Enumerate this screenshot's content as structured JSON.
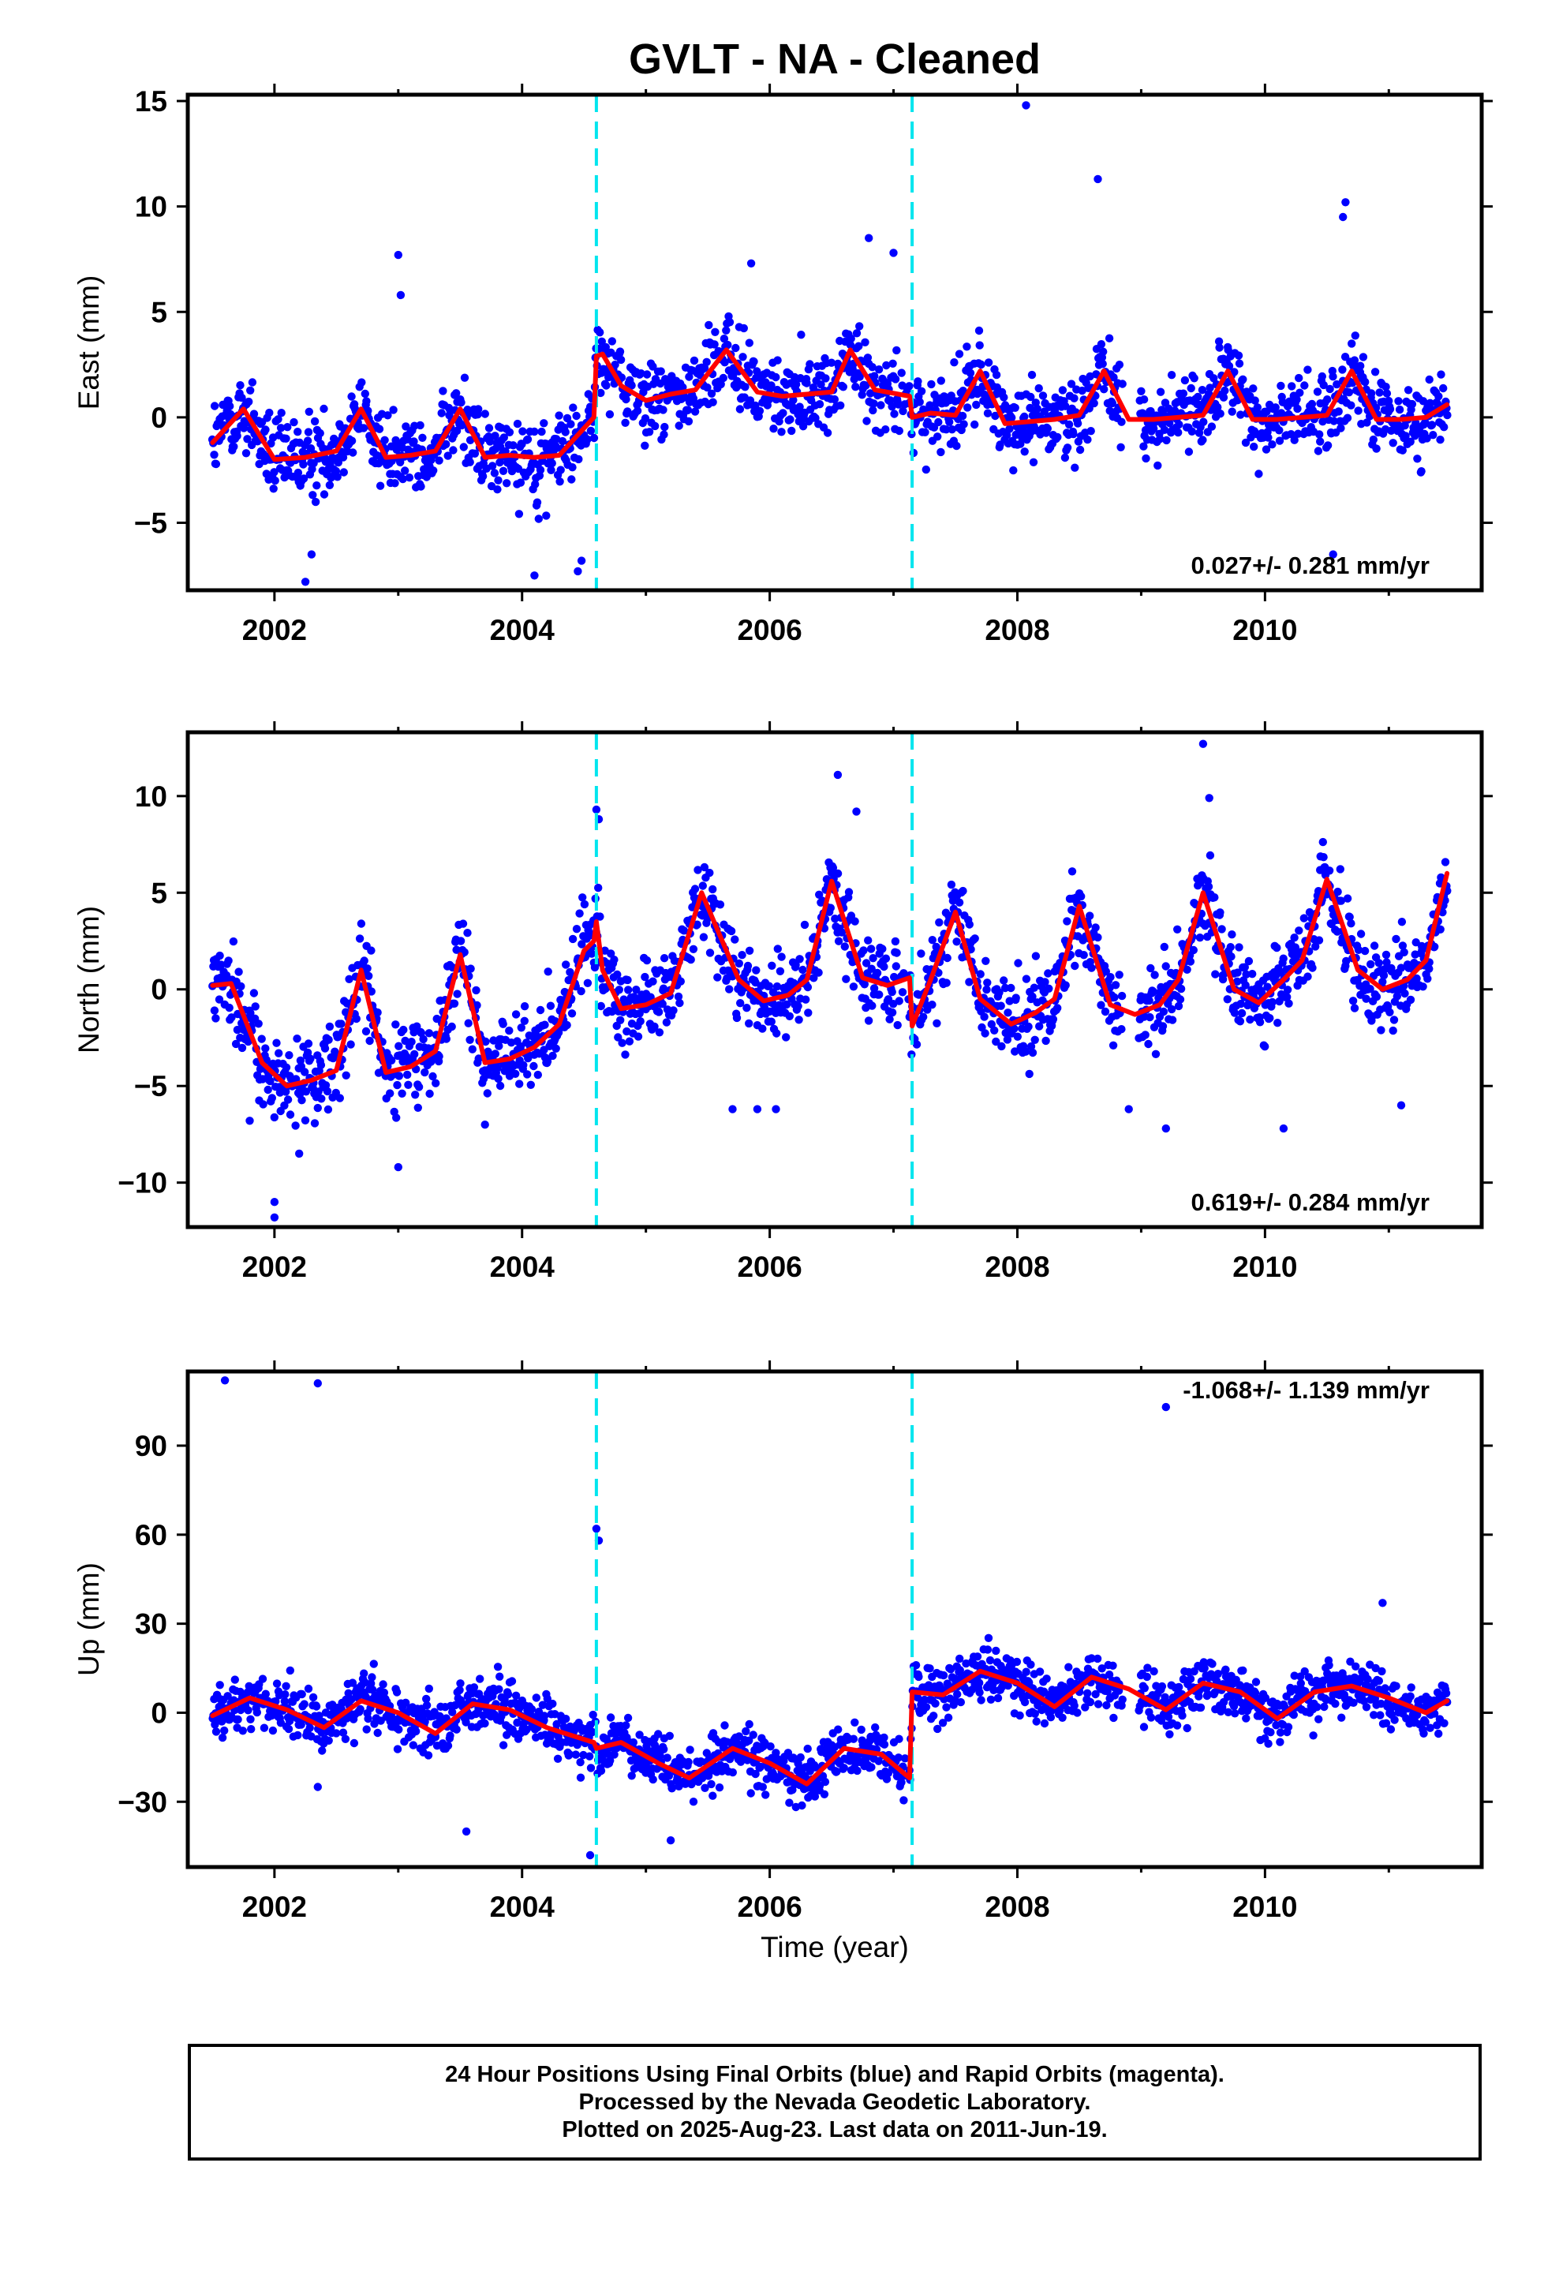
{
  "title": "GVLT  - NA - Cleaned",
  "xlabel": "Time (year)",
  "footer": [
    "24 Hour Positions Using Final Orbits (blue) and Rapid Orbits (magenta).",
    "Processed by the Nevada Geodetic Laboratory.",
    "Plotted on 2025-Aug-23. Last data on 2011-Jun-19."
  ],
  "colors": {
    "points": "#0000ff",
    "model": "#ff0000",
    "offsets": "#00e5ee"
  },
  "chart_data": [
    {
      "type": "scatter",
      "ylabel": "East (mm)",
      "rate_text": "0.027+/- 0.281 mm/yr",
      "xlim": [
        2001.3,
        2011.75
      ],
      "ylim": [
        -8.2,
        15.3
      ],
      "xticks": [
        2002,
        2004,
        2006,
        2008,
        2010
      ],
      "yticks": [
        -5,
        0,
        5,
        10,
        15
      ],
      "offsets": [
        2004.6,
        2007.15
      ],
      "data_range": [
        2001.5,
        2011.47
      ],
      "model": {
        "x": [
          2001.5,
          2001.75,
          2002.0,
          2002.25,
          2002.5,
          2002.7,
          2002.9,
          2003.1,
          2003.3,
          2003.5,
          2003.7,
          2003.9,
          2004.1,
          2004.3,
          2004.58,
          2004.6,
          2004.65,
          2004.8,
          2005.0,
          2005.2,
          2005.4,
          2005.65,
          2005.9,
          2006.1,
          2006.3,
          2006.5,
          2006.65,
          2006.85,
          2007.13,
          2007.15,
          2007.3,
          2007.5,
          2007.7,
          2007.9,
          2008.1,
          2008.3,
          2008.5,
          2008.7,
          2008.9,
          2009.1,
          2009.3,
          2009.5,
          2009.7,
          2009.9,
          2010.1,
          2010.3,
          2010.5,
          2010.7,
          2010.9,
          2011.1,
          2011.3,
          2011.47
        ],
        "y": [
          -1.2,
          0.4,
          -2.0,
          -1.9,
          -1.6,
          0.4,
          -1.9,
          -1.8,
          -1.6,
          0.4,
          -1.9,
          -1.8,
          -1.9,
          -1.8,
          0.0,
          2.9,
          3.0,
          1.5,
          0.8,
          1.1,
          1.3,
          3.2,
          1.2,
          1.0,
          1.1,
          1.2,
          3.2,
          1.3,
          1.0,
          0.0,
          0.2,
          0.1,
          2.2,
          -0.3,
          -0.2,
          -0.1,
          0.1,
          2.2,
          -0.1,
          -0.1,
          0.0,
          0.1,
          2.2,
          -0.1,
          -0.1,
          0.0,
          0.1,
          2.2,
          -0.1,
          -0.1,
          0.0,
          0.6
        ]
      },
      "outliers": {
        "x": [
          2002.25,
          2002.3,
          2003.0,
          2003.02,
          2004.1,
          2004.45,
          2004.48,
          2008.07,
          2008.65,
          2010.65,
          2010.63,
          2007.0,
          2006.8,
          2005.85,
          2010.55
        ],
        "y": [
          -7.8,
          -6.5,
          7.7,
          5.8,
          -7.5,
          -7.3,
          -6.8,
          14.8,
          11.3,
          10.2,
          9.5,
          7.8,
          8.5,
          7.3,
          -6.5
        ]
      }
    },
    {
      "type": "scatter",
      "ylabel": "North (mm)",
      "rate_text": "0.619+/- 0.284 mm/yr",
      "xlim": [
        2001.3,
        2011.75
      ],
      "ylim": [
        -12.3,
        13.3
      ],
      "xticks": [
        2002,
        2004,
        2006,
        2008,
        2010
      ],
      "yticks": [
        -10,
        -5,
        0,
        5,
        10
      ],
      "offsets": [
        2004.6,
        2007.15
      ],
      "data_range": [
        2001.5,
        2011.47
      ],
      "model": {
        "x": [
          2001.5,
          2001.65,
          2001.9,
          2002.1,
          2002.3,
          2002.5,
          2002.7,
          2002.9,
          2003.1,
          2003.3,
          2003.5,
          2003.7,
          2003.9,
          2004.1,
          2004.3,
          2004.5,
          2004.58,
          2004.6,
          2004.65,
          2004.8,
          2005.0,
          2005.2,
          2005.45,
          2005.75,
          2005.95,
          2006.15,
          2006.3,
          2006.5,
          2006.75,
          2006.95,
          2007.13,
          2007.15,
          2007.3,
          2007.5,
          2007.7,
          2007.95,
          2008.15,
          2008.3,
          2008.5,
          2008.75,
          2008.95,
          2009.15,
          2009.3,
          2009.5,
          2009.75,
          2009.95,
          2010.15,
          2010.3,
          2010.5,
          2010.75,
          2010.95,
          2011.15,
          2011.3,
          2011.47
        ],
        "y": [
          0.2,
          0.3,
          -3.8,
          -5.0,
          -4.7,
          -4.2,
          1.0,
          -4.3,
          -4.0,
          -3.2,
          1.8,
          -3.8,
          -3.6,
          -3.0,
          -1.8,
          2.0,
          2.5,
          3.5,
          1.0,
          -1.0,
          -0.8,
          -0.2,
          5.0,
          0.5,
          -0.6,
          -0.3,
          0.5,
          5.6,
          0.6,
          0.2,
          0.6,
          -1.9,
          0.5,
          4.0,
          -0.5,
          -1.8,
          -1.2,
          -0.5,
          4.3,
          -0.8,
          -1.3,
          -0.8,
          0.5,
          5.0,
          0.0,
          -0.7,
          0.5,
          1.5,
          5.7,
          1.0,
          0.0,
          0.5,
          1.5,
          6.0
        ]
      },
      "outliers": {
        "x": [
          2002.0,
          2002.0,
          2001.8,
          2002.2,
          2003.0,
          2003.7,
          2004.6,
          2004.62,
          2006.55,
          2006.7,
          2009.5,
          2009.55,
          2005.7,
          2005.9,
          2006.05,
          2010.15,
          2011.1,
          2008.9,
          2009.2
        ],
        "y": [
          -11.8,
          -11.0,
          -6.8,
          -8.5,
          -9.2,
          -7.0,
          9.3,
          8.8,
          11.1,
          9.2,
          12.7,
          9.9,
          -6.2,
          -6.2,
          -6.2,
          -7.2,
          -6.0,
          -6.2,
          -7.2
        ]
      }
    },
    {
      "type": "scatter",
      "ylabel": "Up (mm)",
      "rate_text": "-1.068+/- 1.139 mm/yr",
      "xlim": [
        2001.3,
        2011.75
      ],
      "ylim": [
        -52,
        115
      ],
      "xticks": [
        2002,
        2004,
        2006,
        2008,
        2010
      ],
      "yticks": [
        -30,
        0,
        30,
        60,
        90
      ],
      "offsets": [
        2004.6,
        2007.15
      ],
      "data_range": [
        2001.5,
        2011.47
      ],
      "model": {
        "x": [
          2001.5,
          2001.8,
          2002.1,
          2002.4,
          2002.7,
          2003.0,
          2003.3,
          2003.6,
          2003.9,
          2004.2,
          2004.58,
          2004.6,
          2004.8,
          2005.1,
          2005.35,
          2005.7,
          2006.0,
          2006.3,
          2006.6,
          2006.9,
          2007.13,
          2007.15,
          2007.4,
          2007.7,
          2008.0,
          2008.3,
          2008.6,
          2008.9,
          2009.2,
          2009.5,
          2009.8,
          2010.1,
          2010.4,
          2010.7,
          2011.0,
          2011.3,
          2011.47
        ],
        "y": [
          -1,
          5,
          1,
          -5,
          4,
          0,
          -7,
          3,
          1,
          -5,
          -10,
          -12,
          -10,
          -17,
          -22,
          -12,
          -17,
          -24,
          -12,
          -14,
          -22,
          7,
          6,
          14,
          10,
          2,
          12,
          8,
          1,
          10,
          7,
          -2,
          7,
          9,
          5,
          0,
          4
        ]
      },
      "outliers": {
        "x": [
          2001.6,
          2002.35,
          2004.6,
          2004.62,
          2009.2,
          2004.55,
          2003.55,
          2002.35,
          2010.95,
          2005.2
        ],
        "y": [
          112,
          111,
          62,
          58,
          103,
          -48,
          -40,
          -25,
          37,
          -43
        ]
      }
    }
  ]
}
